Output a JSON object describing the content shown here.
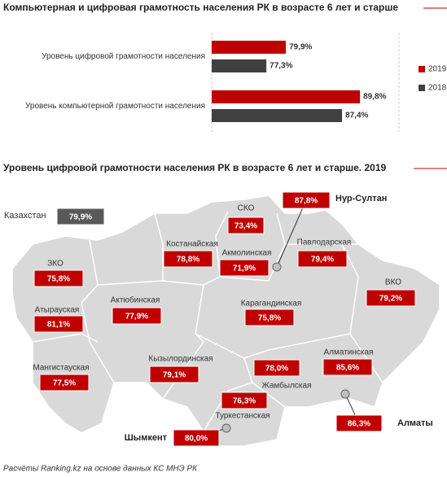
{
  "chart_data": {
    "type": "hbar",
    "title": "Компьютерная и цифровая грамотность населения РК в возрасте 6 лет и старше",
    "categories": [
      "Уровень цифровой грамотности населения",
      "Уровень компьютерной грамотности населения"
    ],
    "series": [
      {
        "name": "2019",
        "color": "#c00000",
        "values": [
          79.9,
          89.8
        ],
        "value_labels": [
          "79,9%",
          "89,8%"
        ]
      },
      {
        "name": "2018",
        "color": "#404040",
        "values": [
          77.3,
          87.4
        ],
        "value_labels": [
          "77,3%",
          "87,4%"
        ]
      }
    ],
    "xlim": [
      70,
      95
    ],
    "legend": "right"
  },
  "map": {
    "title": "Уровень цифровой грамотности населения РК в возрасте 6 лет и старше. 2019",
    "color": "#c00000",
    "total_color": "#595959",
    "regions": [
      {
        "name": "Казахстан",
        "value": 79.9,
        "value_label": "79,9%"
      },
      {
        "name": "СКО",
        "value": 73.4,
        "value_label": "73,4%"
      },
      {
        "name": "Нур-Султан",
        "value": 87.8,
        "value_label": "87,8%"
      },
      {
        "name": "Костанайская",
        "value": 78.8,
        "value_label": "78,8%"
      },
      {
        "name": "Акмолинская",
        "value": 71.9,
        "value_label": "71,9%"
      },
      {
        "name": "Павлодарская",
        "value": 79.4,
        "value_label": "79,4%"
      },
      {
        "name": "ЗКО",
        "value": 75.8,
        "value_label": "75,8%"
      },
      {
        "name": "ВКО",
        "value": 79.2,
        "value_label": "79,2%"
      },
      {
        "name": "Актюбинская",
        "value": 77.9,
        "value_label": "77,9%"
      },
      {
        "name": "Карагандинская",
        "value": 75.8,
        "value_label": "75,8%"
      },
      {
        "name": "Атырауская",
        "value": 81.1,
        "value_label": "81,1%"
      },
      {
        "name": "Мангистауская",
        "value": 77.5,
        "value_label": "77,5%"
      },
      {
        "name": "Кызылординская",
        "value": 79.1,
        "value_label": "79,1%"
      },
      {
        "name": "Жамбылская",
        "value": 78.0,
        "value_label": "78,0%"
      },
      {
        "name": "Алматинская",
        "value": 85.6,
        "value_label": "85,6%"
      },
      {
        "name": "Туркестанская",
        "value": 76.3,
        "value_label": "76,3%"
      },
      {
        "name": "Алматы",
        "value": 86.3,
        "value_label": "86,3%"
      },
      {
        "name": "Шымкент",
        "value": 80.0,
        "value_label": "80,0%"
      }
    ]
  },
  "source": "Расчёты Ranking.kz на основе данных КС МНЭ РК"
}
